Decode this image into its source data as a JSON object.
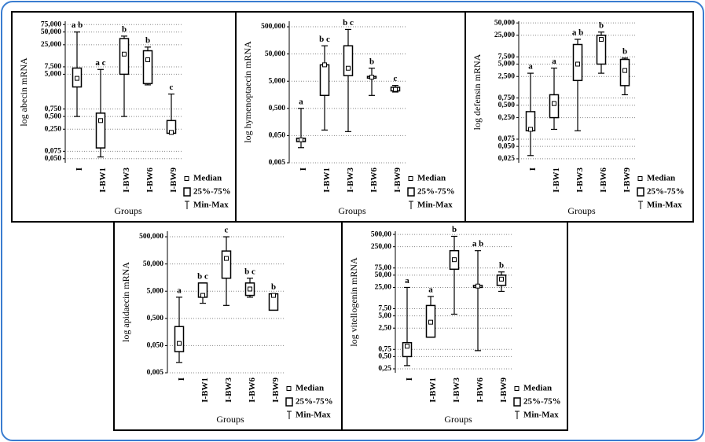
{
  "chart_data": [
    {
      "type": "box",
      "y_label": "log abecin mRNA",
      "x_label": "Groups",
      "log_scale": true,
      "grid": true,
      "categories": [
        "I",
        "I-BW1",
        "I-BW3",
        "I-BW6",
        "I-BW9"
      ],
      "min": [
        0.5,
        0.055,
        0.5,
        2.8,
        0.2
      ],
      "q1": [
        2.5,
        0.09,
        5,
        3,
        0.2
      ],
      "median": [
        4,
        0.4,
        15,
        11,
        0.21
      ],
      "q3": [
        7,
        0.6,
        35,
        18,
        0.4
      ],
      "max": [
        50,
        6.5,
        40,
        22,
        1.7
      ],
      "annotations": [
        "a b",
        "a c",
        "b",
        "b",
        "c"
      ],
      "ylim": [
        0.04,
        90
      ],
      "yticks": [
        {
          "value": 75,
          "label": "75,000"
        },
        {
          "value": 50,
          "label": "50,000"
        },
        {
          "value": 25,
          "label": "25,000"
        },
        {
          "value": 7.5,
          "label": "7,500"
        },
        {
          "value": 5,
          "label": "5,000"
        },
        {
          "value": 0.75,
          "label": "0,750"
        },
        {
          "value": 0.5,
          "label": "0,500"
        },
        {
          "value": 0.25,
          "label": "0,250"
        },
        {
          "value": 0.075,
          "label": "0,075"
        },
        {
          "value": 0.05,
          "label": "0,050"
        }
      ],
      "legend": [
        "Median",
        "25%-75%",
        "Min-Max"
      ]
    },
    {
      "type": "box",
      "y_label": "log hymenoptaecin mRNA",
      "x_label": "Groups",
      "log_scale": true,
      "grid": true,
      "categories": [
        "I",
        "I-BW1",
        "I-BW3",
        "I-BW6",
        "I-BW9"
      ],
      "min": [
        0.018,
        0.08,
        0.07,
        1.5,
        2
      ],
      "q1": [
        0.03,
        1.5,
        8,
        6.5,
        2.2
      ],
      "median": [
        0.035,
        20,
        15,
        7,
        2.5
      ],
      "q3": [
        0.04,
        20,
        100,
        7.5,
        3
      ],
      "max": [
        0.5,
        100,
        400,
        15,
        3.5
      ],
      "annotations": [
        "a",
        "b c",
        "b c",
        "b",
        "c"
      ],
      "ylim": [
        0.005,
        800
      ],
      "yticks": [
        {
          "value": 500,
          "label": "500,000"
        },
        {
          "value": 50,
          "label": "50,000"
        },
        {
          "value": 5,
          "label": "5,000"
        },
        {
          "value": 0.5,
          "label": "0,500"
        },
        {
          "value": 0.05,
          "label": "0,050"
        },
        {
          "value": 0.005,
          "label": "0,005"
        }
      ],
      "legend": [
        "Median",
        "25%-75%",
        "Min-Max"
      ]
    },
    {
      "type": "box",
      "y_label": "log defensin mRNA",
      "x_label": "Groups",
      "log_scale": true,
      "grid": true,
      "categories": [
        "I",
        "I-BW1",
        "I-BW3",
        "I-BW6",
        "I-BW9"
      ],
      "min": [
        0.03,
        0.13,
        0.12,
        3,
        0.9
      ],
      "q1": [
        0.12,
        0.25,
        2,
        5,
        1.5
      ],
      "median": [
        0.13,
        0.55,
        5,
        20,
        3.5
      ],
      "q3": [
        0.35,
        0.9,
        15,
        25,
        6.5
      ],
      "max": [
        3,
        4,
        20,
        30,
        7
      ],
      "annotations": [
        "a",
        "a",
        "a b",
        "b",
        "b"
      ],
      "ylim": [
        0.02,
        55
      ],
      "yticks": [
        {
          "value": 50,
          "label": "50,000"
        },
        {
          "value": 25,
          "label": "25,000"
        },
        {
          "value": 7.5,
          "label": "7,500"
        },
        {
          "value": 5,
          "label": "5,000"
        },
        {
          "value": 2.5,
          "label": "2,500"
        },
        {
          "value": 0.75,
          "label": "0,750"
        },
        {
          "value": 0.5,
          "label": "0,500"
        },
        {
          "value": 0.25,
          "label": "0,250"
        },
        {
          "value": 0.075,
          "label": "0,075"
        },
        {
          "value": 0.05,
          "label": "0,050"
        },
        {
          "value": 0.025,
          "label": "0,025"
        }
      ],
      "legend": [
        "Median",
        "25%-75%",
        "Min-Max"
      ]
    },
    {
      "type": "box",
      "y_label": "log apidaecin mRNA",
      "x_label": "Groups",
      "log_scale": true,
      "grid": true,
      "categories": [
        "I",
        "I-BW1",
        "I-BW3",
        "I-BW6",
        "I-BW9"
      ],
      "min": [
        0.012,
        1.8,
        1.5,
        3,
        1
      ],
      "q1": [
        0.03,
        3,
        15,
        3.5,
        1
      ],
      "median": [
        0.06,
        3.5,
        80,
        6,
        3.5
      ],
      "q3": [
        0.25,
        10,
        150,
        10,
        4
      ],
      "max": [
        3,
        10,
        500,
        15,
        4
      ],
      "annotations": [
        "a",
        "b c",
        "c",
        "b c",
        "b"
      ],
      "ylim": [
        0.005,
        800
      ],
      "yticks": [
        {
          "value": 500,
          "label": "500,000"
        },
        {
          "value": 50,
          "label": "50,000"
        },
        {
          "value": 5,
          "label": "5,000"
        },
        {
          "value": 0.5,
          "label": "0,500"
        },
        {
          "value": 0.05,
          "label": "0,050"
        },
        {
          "value": 0.005,
          "label": "0,005"
        }
      ],
      "legend": [
        "Median",
        "25%-75%",
        "Min-Max"
      ]
    },
    {
      "type": "box",
      "y_label": "log vitellogenin mRNA",
      "x_label": "Groups",
      "log_scale": true,
      "grid": true,
      "categories": [
        "I",
        "I-BW1",
        "I-BW3",
        "I-BW6",
        "I-BW9"
      ],
      "min": [
        0.3,
        1.5,
        5.5,
        0.7,
        20
      ],
      "q1": [
        0.5,
        1.5,
        70,
        25,
        28
      ],
      "median": [
        0.9,
        3.5,
        120,
        27,
        40
      ],
      "q3": [
        1.1,
        9,
        200,
        28,
        50
      ],
      "max": [
        25,
        15,
        450,
        200,
        60
      ],
      "annotations": [
        "a",
        "a",
        "b",
        "a b",
        "b"
      ],
      "ylim": [
        0.2,
        600
      ],
      "yticks": [
        {
          "value": 500,
          "label": "500,00"
        },
        {
          "value": 250,
          "label": "250,00"
        },
        {
          "value": 75,
          "label": "75,00"
        },
        {
          "value": 50,
          "label": "50,00"
        },
        {
          "value": 25,
          "label": "25,00"
        },
        {
          "value": 7.5,
          "label": "7,50"
        },
        {
          "value": 5,
          "label": "5,00"
        },
        {
          "value": 2.5,
          "label": "2,50"
        },
        {
          "value": 0.75,
          "label": "0,75"
        },
        {
          "value": 0.5,
          "label": "0,50"
        },
        {
          "value": 0.25,
          "label": "0,25"
        }
      ],
      "legend": [
        "Median",
        "25%-75%",
        "Min-Max"
      ]
    }
  ]
}
